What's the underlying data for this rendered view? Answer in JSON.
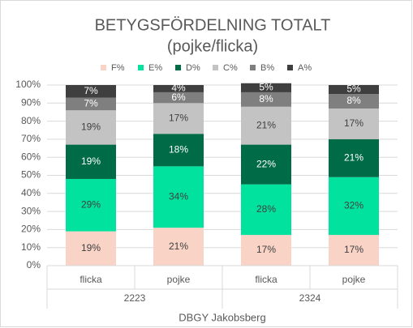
{
  "chart_data": {
    "type": "stacked_bar",
    "title": "BETYGSFÖRDELNING TOTALT",
    "subtitle": "(pojke/flicka)",
    "categories": [
      "flicka",
      "pojke",
      "flicka",
      "pojke"
    ],
    "groups": [
      "2223",
      "2324"
    ],
    "x_label": "DBGY Jakobsberg",
    "series": [
      {
        "name": "F%",
        "color": "#f8d3c6",
        "values": [
          19,
          21,
          17,
          17
        ],
        "value_labels": [
          "19%",
          "21%",
          "17%",
          "17%"
        ]
      },
      {
        "name": "E%",
        "color": "#00e29e",
        "values": [
          29,
          34,
          28,
          32
        ],
        "value_labels": [
          "29%",
          "34%",
          "28%",
          "32%"
        ]
      },
      {
        "name": "D%",
        "color": "#006b47",
        "values": [
          19,
          18,
          22,
          21
        ],
        "value_labels": [
          "19%",
          "18%",
          "22%",
          "21%"
        ]
      },
      {
        "name": "C%",
        "color": "#c3c3c3",
        "values": [
          19,
          17,
          21,
          17
        ],
        "value_labels": [
          "19%",
          "17%",
          "21%",
          "17%"
        ]
      },
      {
        "name": "B%",
        "color": "#7f7f7f",
        "values": [
          7,
          6,
          8,
          8
        ],
        "value_labels": [
          "7%",
          "6%",
          "8%",
          "8%"
        ]
      },
      {
        "name": "A%",
        "color": "#3f3f3f",
        "values": [
          7,
          4,
          5,
          5
        ],
        "value_labels": [
          "7%",
          "4%",
          "5%",
          "5%"
        ]
      }
    ],
    "ylim": [
      0,
      100
    ],
    "yticks": [
      {
        "value": 0,
        "label": "0%"
      },
      {
        "value": 10,
        "label": "10%"
      },
      {
        "value": 20,
        "label": "20%"
      },
      {
        "value": 30,
        "label": "30%"
      },
      {
        "value": 40,
        "label": "40%"
      },
      {
        "value": 50,
        "label": "50%"
      },
      {
        "value": 60,
        "label": "60%"
      },
      {
        "value": 70,
        "label": "70%"
      },
      {
        "value": 80,
        "label": "80%"
      },
      {
        "value": 90,
        "label": "90%"
      },
      {
        "value": 100,
        "label": "100%"
      }
    ],
    "grid": true,
    "legend": "top"
  }
}
